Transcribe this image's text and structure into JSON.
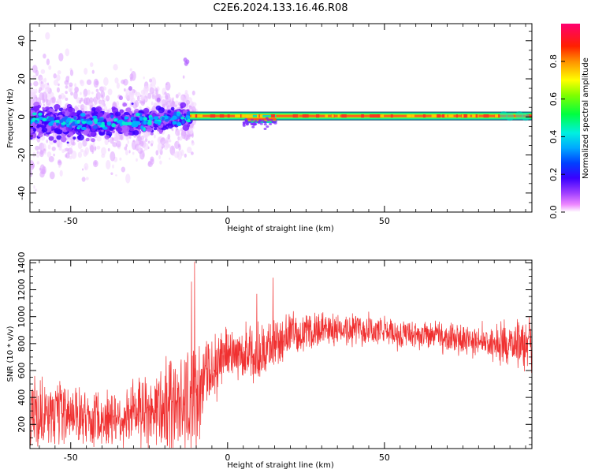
{
  "figure": {
    "title": "C2E6.2024.133.16.46.R08"
  },
  "colors": {
    "snr_line": "#f03030",
    "frame": "#000000",
    "background": "#ffffff"
  },
  "chart_data": [
    {
      "type": "heatmap",
      "xlabel": "Height of straight line (km)",
      "ylabel": "Frequency (Hz)",
      "xlim": [
        -63,
        97
      ],
      "ylim": [
        -50,
        49
      ],
      "xticks": [
        -50,
        0,
        50
      ],
      "yticks": [
        -40,
        -20,
        0,
        20,
        40
      ],
      "colorbar": {
        "label": "Normalized spectral amplitude",
        "range": [
          0.0,
          1.0
        ],
        "ticks": [
          0.0,
          0.2,
          0.4,
          0.6,
          0.8
        ],
        "tick_labels": [
          "0.0",
          "0.2",
          "0.4",
          "0.6",
          "0.8"
        ]
      },
      "description_points": {
        "noisy_region": {
          "x_from": -63,
          "x_to": -12,
          "freq_center": -2,
          "freq_spread": 8
        },
        "stable_line": {
          "x_from": -12,
          "x_to": 97,
          "freq": 0.5
        }
      }
    },
    {
      "type": "line",
      "xlabel": "Height of straight line (km)",
      "ylabel": "SNR (10 * v/v)",
      "xlim": [
        -63,
        97
      ],
      "ylim": [
        20,
        1420
      ],
      "xticks": [
        -50,
        0,
        50
      ],
      "yticks": [
        200,
        400,
        600,
        800,
        1000,
        1200,
        1400
      ],
      "series": [
        {
          "name": "",
          "envelope": {
            "x": [
              -63,
              -55,
              -45,
              -35,
              -25,
              -18,
              -13,
              -10,
              -7,
              -3,
              0,
              5,
              10,
              15,
              20,
              30,
              40,
              50,
              60,
              70,
              80,
              88,
              92,
              97
            ],
            "mean": [
              300,
              260,
              250,
              250,
              290,
              360,
              430,
              380,
              540,
              680,
              730,
              740,
              720,
              800,
              870,
              900,
              910,
              890,
              860,
              840,
              820,
              780,
              800,
              820
            ],
            "amplitude": [
              200,
              180,
              170,
              180,
              220,
              300,
              350,
              330,
              230,
              180,
              150,
              150,
              180,
              160,
              120,
              100,
              100,
              90,
              90,
              90,
              90,
              120,
              150,
              160
            ]
          },
          "spikes": [
            {
              "x": -10.5,
              "y": 1410
            },
            {
              "x": -11.5,
              "y": 1260
            },
            {
              "x": 14.5,
              "y": 1290
            },
            {
              "x": 9.3,
              "y": 1170
            }
          ]
        }
      ]
    }
  ]
}
